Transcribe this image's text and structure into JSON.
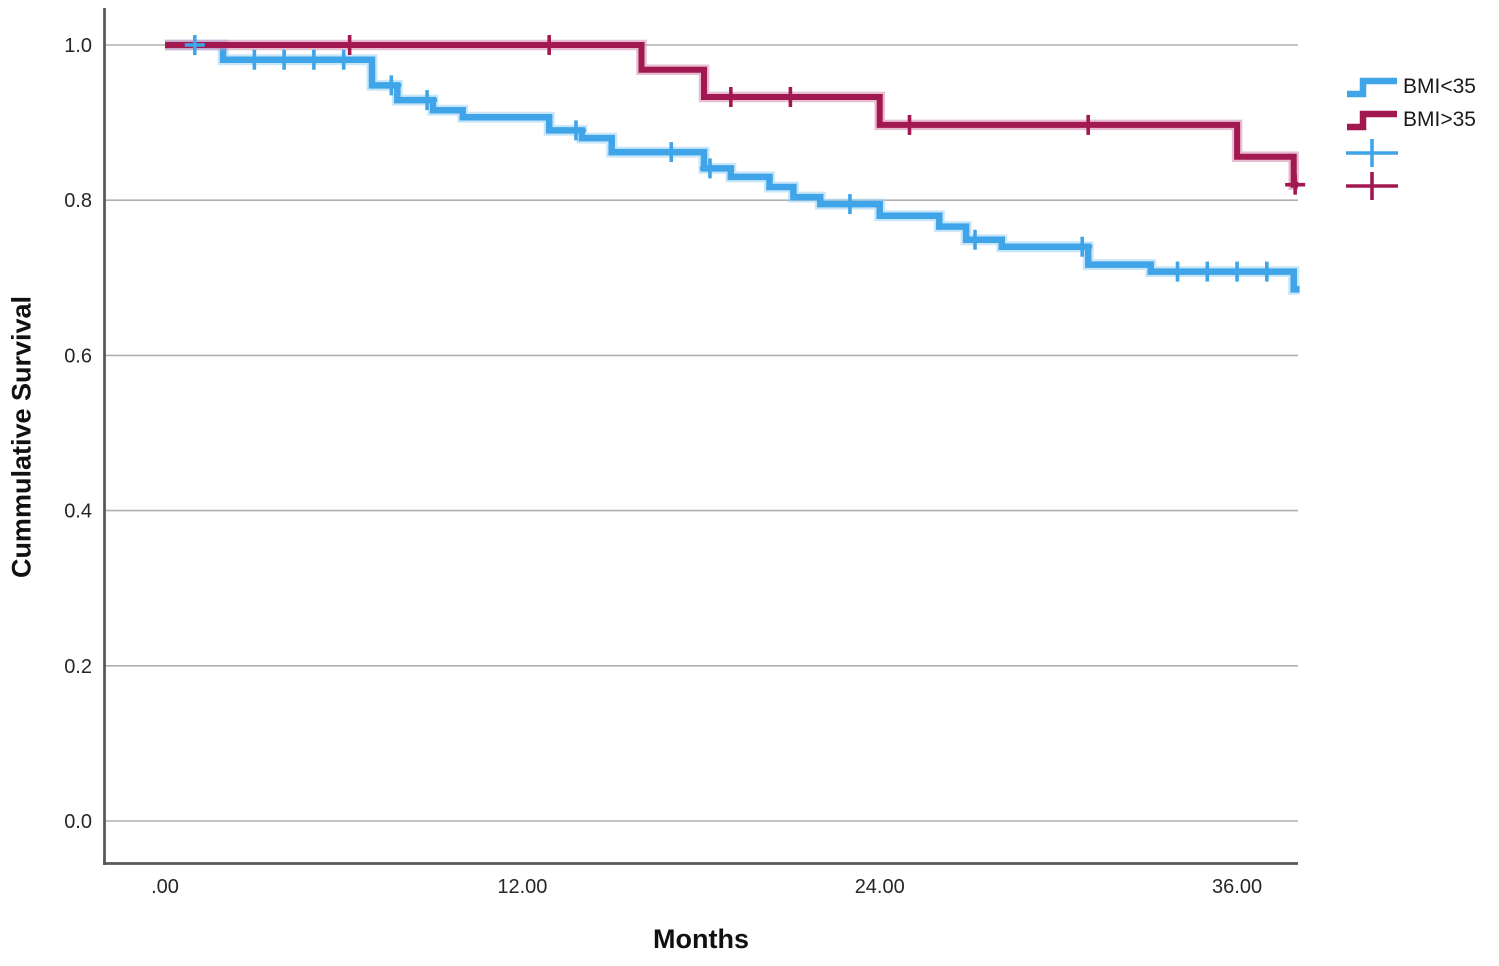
{
  "chart_data": {
    "type": "line",
    "subtype": "kaplan-meier-step",
    "title": "",
    "xlabel": "Months",
    "ylabel": "Cummulative Survival",
    "grid": "horizontal",
    "legend_position": "right",
    "axis_color": "#595959",
    "grid_color": "#b0b0b0",
    "tick_label_color": "#262626",
    "xlim": [
      -2.05,
      38.2
    ],
    "ylim": [
      -0.055,
      1.05
    ],
    "x_ticks": [
      {
        "value": 0,
        "label": ".00"
      },
      {
        "value": 12,
        "label": "12.00"
      },
      {
        "value": 24,
        "label": "24.00"
      },
      {
        "value": 36,
        "label": "36.00"
      }
    ],
    "y_ticks": [
      {
        "value": 0.0,
        "label": "0.0"
      },
      {
        "value": 0.2,
        "label": "0.2"
      },
      {
        "value": 0.4,
        "label": "0.4"
      },
      {
        "value": 0.6,
        "label": "0.6"
      },
      {
        "value": 0.8,
        "label": "0.8"
      },
      {
        "value": 1.0,
        "label": "1.0"
      }
    ],
    "series": [
      {
        "name": "BMI<35",
        "color": "#3FA5E8",
        "halo_color": "#9ED4F6",
        "line_width": 6.5,
        "steps": [
          [
            0,
            1.0
          ],
          [
            1.95,
            0.981
          ],
          [
            6.95,
            0.948
          ],
          [
            7.8,
            0.929
          ],
          [
            9.0,
            0.916
          ],
          [
            10.0,
            0.907
          ],
          [
            12.9,
            0.89
          ],
          [
            14.0,
            0.88
          ],
          [
            15.0,
            0.862
          ],
          [
            18.1,
            0.841
          ],
          [
            19.0,
            0.83
          ],
          [
            20.3,
            0.817
          ],
          [
            21.1,
            0.804
          ],
          [
            22.0,
            0.795
          ],
          [
            24.0,
            0.78
          ],
          [
            26.0,
            0.766
          ],
          [
            26.9,
            0.749
          ],
          [
            28.1,
            0.74
          ],
          [
            31.0,
            0.717
          ],
          [
            33.1,
            0.708
          ],
          [
            37.9,
            0.685
          ]
        ],
        "end_time": 38.1,
        "censored": [
          [
            1.0,
            1.0
          ],
          [
            3.0,
            0.981
          ],
          [
            4.0,
            0.981
          ],
          [
            5.0,
            0.981
          ],
          [
            6.0,
            0.981
          ],
          [
            7.6,
            0.948
          ],
          [
            8.8,
            0.929
          ],
          [
            13.8,
            0.89
          ],
          [
            17.0,
            0.862
          ],
          [
            18.3,
            0.841
          ],
          [
            23.0,
            0.795
          ],
          [
            27.2,
            0.749
          ],
          [
            30.8,
            0.74
          ],
          [
            34.0,
            0.708
          ],
          [
            35.0,
            0.708
          ],
          [
            36.0,
            0.708
          ],
          [
            37.0,
            0.708
          ]
        ]
      },
      {
        "name": "BMI>35",
        "color": "#A21850",
        "halo_color": "#D487AC",
        "line_width": 6,
        "steps": [
          [
            0,
            1.0
          ],
          [
            16.0,
            0.968
          ],
          [
            18.1,
            0.933
          ],
          [
            24.0,
            0.897
          ],
          [
            36.0,
            0.856
          ],
          [
            37.9,
            0.82
          ]
        ],
        "end_time": 38.05,
        "censored": [
          [
            6.2,
            1.0
          ],
          [
            12.9,
            1.0
          ],
          [
            19.0,
            0.933
          ],
          [
            21.0,
            0.933
          ],
          [
            25.0,
            0.897
          ],
          [
            31.0,
            0.897
          ],
          [
            37.95,
            0.82
          ]
        ]
      }
    ],
    "legend": {
      "entries": [
        {
          "type": "step-line",
          "label": "BMI<35",
          "color": "#3FA5E8"
        },
        {
          "type": "step-line",
          "label": "BMI>35",
          "color": "#A21850"
        },
        {
          "type": "censor-plus",
          "label": "",
          "color": "#3FA5E8"
        },
        {
          "type": "censor-plus",
          "label": "",
          "color": "#A21850"
        }
      ]
    }
  }
}
